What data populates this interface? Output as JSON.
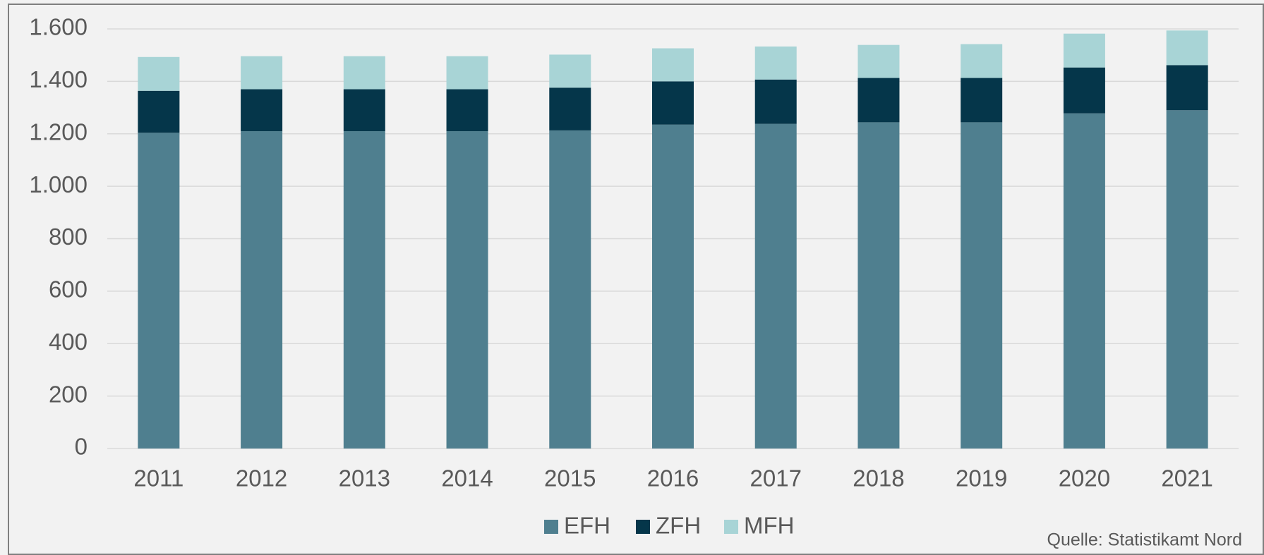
{
  "chart_data": {
    "type": "stacked_bar",
    "categories": [
      "2011",
      "2012",
      "2013",
      "2014",
      "2015",
      "2016",
      "2017",
      "2018",
      "2019",
      "2020",
      "2021"
    ],
    "series": [
      {
        "name": "EFH",
        "color": "#4f7f8f",
        "values": [
          1204,
          1210,
          1210,
          1210,
          1213,
          1235,
          1238,
          1244,
          1244,
          1278,
          1290
        ]
      },
      {
        "name": "ZFH",
        "color": "#05364a",
        "values": [
          160,
          160,
          160,
          160,
          163,
          165,
          169,
          169,
          169,
          175,
          172
        ]
      },
      {
        "name": "MFH",
        "color": "#a8d4d6",
        "values": [
          129,
          126,
          126,
          126,
          126,
          126,
          126,
          126,
          129,
          129,
          132
        ]
      }
    ],
    "ylim": [
      0,
      1600
    ],
    "yticks": [
      0,
      200,
      400,
      600,
      800,
      {
        "value": 1000,
        "label": "1.000"
      },
      {
        "value": 1200,
        "label": "1.200"
      },
      {
        "value": 1400,
        "label": "1.400"
      },
      {
        "value": 1600,
        "label": "1.600"
      }
    ],
    "grid": true,
    "legend": "bottom",
    "source": "Quelle: Statistikamt Nord"
  }
}
